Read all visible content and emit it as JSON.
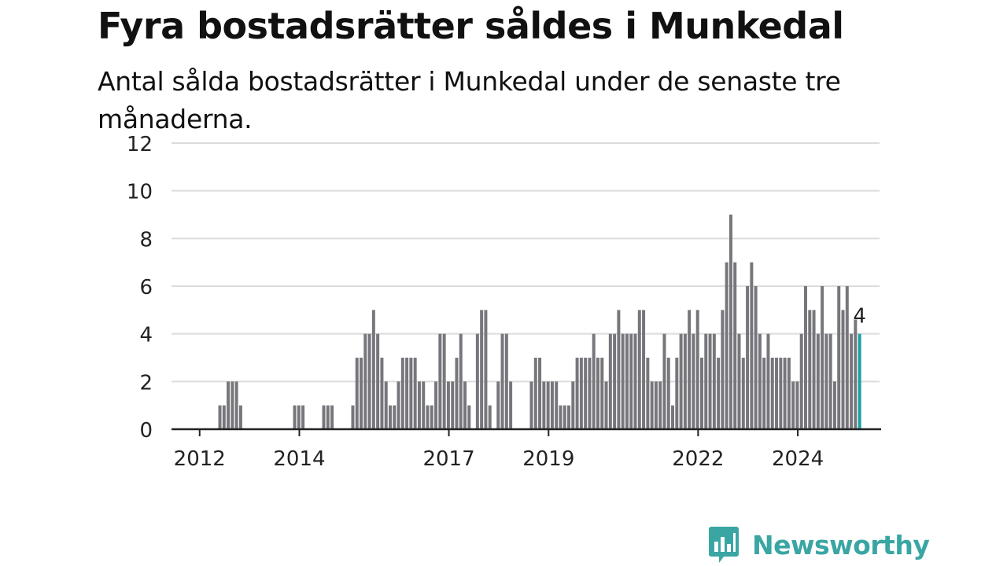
{
  "title": "Fyra bostadsrätter såldes i Munkedal",
  "subtitle": "Antal sålda bostadsrätter i Munkedal under de senaste tre månaderna.",
  "logo_text": "Newsworthy",
  "colors": {
    "bar": "#76767c",
    "highlight": "#19a2a2",
    "grid": "#dcdcdc",
    "axis": "#222222",
    "brand": "#3aa6a3"
  },
  "chart_data": {
    "type": "bar",
    "title": "Fyra bostadsrätter såldes i Munkedal",
    "subtitle": "Antal sålda bostadsrätter i Munkedal under de senaste tre månaderna.",
    "xlabel": "",
    "ylabel": "",
    "ylim": [
      0,
      12
    ],
    "yticks": [
      "0",
      "2",
      "4",
      "6",
      "8",
      "10",
      "12"
    ],
    "xticks": [
      "2012",
      "2014",
      "2017",
      "2019",
      "2022",
      "2024"
    ],
    "grid": true,
    "x_start": "2011-09",
    "x_end": "2025-03",
    "values": [
      0,
      0,
      0,
      0,
      0,
      0,
      0,
      0,
      0,
      1,
      1,
      2,
      2,
      2,
      1,
      0,
      0,
      0,
      0,
      0,
      0,
      0,
      0,
      0,
      0,
      0,
      0,
      1,
      1,
      1,
      0,
      0,
      0,
      0,
      1,
      1,
      1,
      0,
      0,
      0,
      0,
      1,
      3,
      3,
      4,
      4,
      5,
      4,
      3,
      2,
      1,
      1,
      2,
      3,
      3,
      3,
      3,
      2,
      2,
      1,
      1,
      2,
      4,
      4,
      2,
      2,
      3,
      4,
      2,
      1,
      0,
      4,
      5,
      5,
      1,
      0,
      2,
      4,
      4,
      2,
      0,
      0,
      0,
      0,
      2,
      3,
      3,
      2,
      2,
      2,
      2,
      1,
      1,
      1,
      2,
      3,
      3,
      3,
      3,
      4,
      3,
      3,
      2,
      4,
      4,
      5,
      4,
      4,
      4,
      4,
      5,
      5,
      3,
      2,
      2,
      2,
      4,
      3,
      1,
      3,
      4,
      4,
      5,
      4,
      5,
      3,
      4,
      4,
      4,
      3,
      5,
      7,
      9,
      7,
      4,
      3,
      6,
      7,
      6,
      4,
      3,
      4,
      3,
      3,
      3,
      3,
      3,
      2,
      2,
      4,
      6,
      5,
      5,
      4,
      6,
      4,
      4,
      2,
      6,
      5,
      6,
      4,
      4.6,
      4
    ],
    "highlight": {
      "value": 4,
      "label": "4"
    }
  }
}
